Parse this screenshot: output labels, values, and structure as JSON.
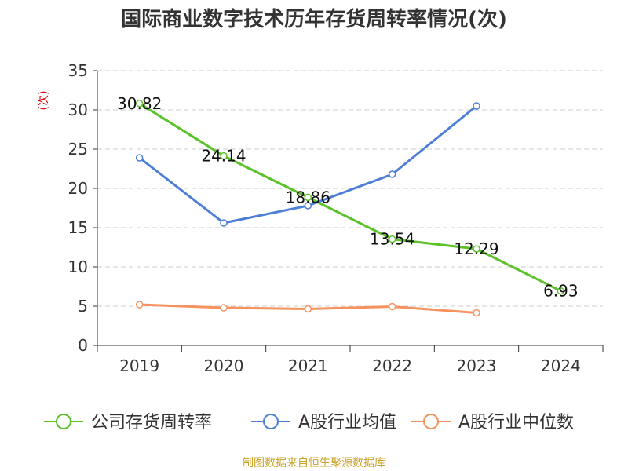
{
  "chart_data": {
    "type": "line",
    "title": "国际商业数字技术历年存货周转率情况(次)",
    "ylabel": "(次)",
    "xlabel": "",
    "categories": [
      "2019",
      "2020",
      "2021",
      "2022",
      "2023",
      "2024"
    ],
    "ylim": [
      0,
      35
    ],
    "yticks": [
      0,
      5,
      10,
      15,
      20,
      25,
      30,
      35
    ],
    "grid": true,
    "legend_position": "bottom",
    "series": [
      {
        "name": "公司存货周转率",
        "color": "#5cc22a",
        "values": [
          30.82,
          24.14,
          18.86,
          13.54,
          12.29,
          6.93
        ],
        "labels": [
          "30.82",
          "24.14",
          "18.86",
          "13.54",
          "12.29",
          "6.93"
        ]
      },
      {
        "name": "A股行业均值",
        "color": "#4e7fd8",
        "values": [
          23.9,
          15.6,
          17.8,
          21.8,
          30.5,
          null
        ]
      },
      {
        "name": "A股行业中位数",
        "color": "#f5925e",
        "values": [
          5.2,
          4.8,
          4.65,
          4.95,
          4.15,
          null
        ]
      }
    ],
    "source": "制图数据来自恒生聚源数据库"
  }
}
